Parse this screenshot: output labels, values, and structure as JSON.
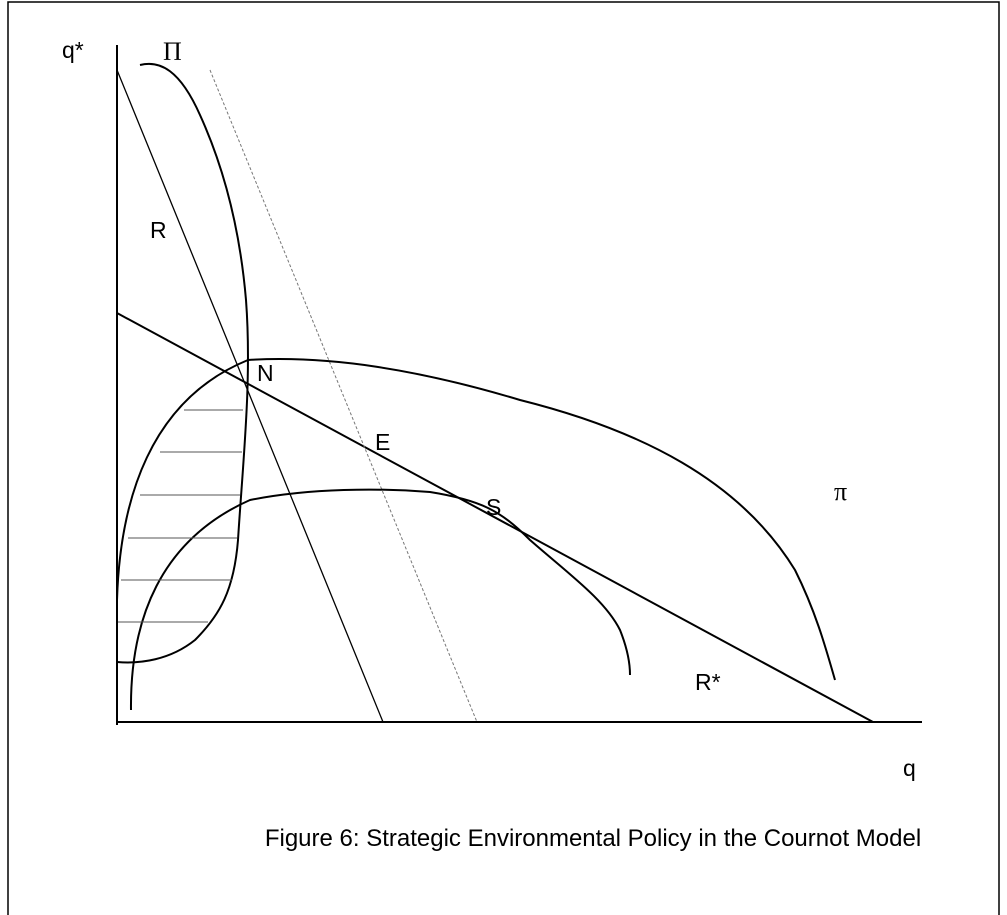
{
  "figure": {
    "labels": {
      "y_axis": "q*",
      "Pi": "Π",
      "R": "R",
      "N": "N",
      "E": "E",
      "S": "S",
      "pi": "π",
      "R_star": "R*",
      "x_axis": "q"
    },
    "caption": "Figure 6: Strategic Environmental Policy in the Cournot Model"
  }
}
